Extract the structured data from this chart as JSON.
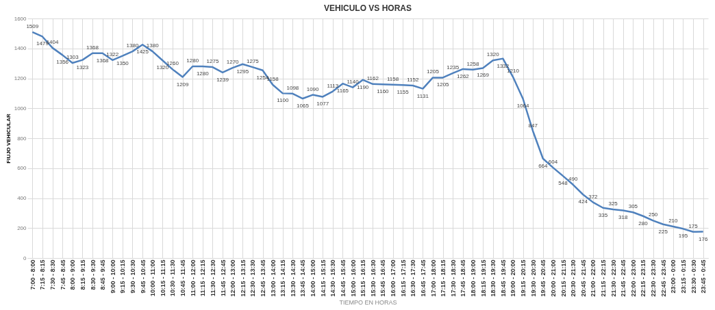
{
  "chart_data": {
    "type": "line",
    "title": "VEHICULO  VS HORAS",
    "xlabel": "TIEMPO EN HORAS",
    "ylabel": "FlUJO VEHICULAR",
    "categories": [
      "7:00 - 8:00",
      "7:15 - 8:15",
      "7:30 - 8:30",
      "7:45 - 8:45",
      "8:00 - 9:00",
      "8:15 - 9:15",
      "8:30 - 9:30",
      "8:45 - 9:45",
      "9:00 - 10:00",
      "9:15 - 10:15",
      "9:30 - 10:30",
      "9:45 - 10:45",
      "10:00 - 11:00",
      "10:15 - 11:15",
      "10:30 - 11:30",
      "10:45 - 11:45",
      "11:00 - 12:00",
      "11:15 - 12:15",
      "11:30 - 12:30",
      "11:45 - 12:45",
      "12:00 - 13:00",
      "12:15 - 13:15",
      "12:30 - 13:30",
      "12:45 - 13:45",
      "13:00 - 14:00",
      "13:15 - 14:15",
      "13:30 - 14:30",
      "13:45 - 14:45",
      "14:00 - 15:00",
      "14:15 - 15:15",
      "14:30 - 15:30",
      "14:45 - 15:45",
      "15:00 - 16:00",
      "15:15 - 16:15",
      "15:30 - 16:30",
      "15:45 - 16:45",
      "16:00 - 17:00",
      "16:15 - 17:15",
      "16:30 - 17:30",
      "16:45 - 17:45",
      "17:00 - 18:00",
      "17:15 - 18:15",
      "17:30 - 18:30",
      "17:45 - 18:45",
      "18:00 - 19:00",
      "18:15 - 19:15",
      "18:30 - 19:30",
      "18:45 - 19:45",
      "19:00 - 20:00",
      "19:15 - 20:15",
      "19:30 - 20:30",
      "19:45 - 20:45",
      "20:00 - 21:00",
      "20:15 - 21:15",
      "20:30 - 21:30",
      "20:45 - 21:45",
      "21:00 - 22:00",
      "21:15 - 22:15",
      "21:30 - 22:30",
      "21:45 - 22:45",
      "22:00 - 23:00",
      "22:15 - 23:15",
      "22:30 - 23:30",
      "22:45 - 23:45",
      "23:00 - 0:00",
      "23:15 - 0:15",
      "23:30 - 0:30",
      "23:45 - 0:45"
    ],
    "series": [
      {
        "color": "#4f81bd",
        "values": [
          1509,
          1479,
          1404,
          1356,
          1303,
          1323,
          1368,
          1368,
          1322,
          1350,
          1380,
          1425,
          1380,
          1320,
          1260,
          1209,
          1280,
          1280,
          1275,
          1239,
          1270,
          1295,
          1275,
          1254,
          1158,
          1100,
          1098,
          1065,
          1090,
          1077,
          1113,
          1165,
          1140,
          1190,
          1162,
          1160,
          1158,
          1155,
          1152,
          1131,
          1205,
          1205,
          1235,
          1262,
          1258,
          1269,
          1320,
          1332,
          1210,
          1064,
          847,
          664,
          604,
          548,
          490,
          424,
          372,
          335,
          325,
          318,
          305,
          280,
          250,
          225,
          210,
          195,
          175,
          176
        ]
      }
    ],
    "ylim": [
      0,
      1600
    ],
    "yticks": [
      0,
      200,
      400,
      600,
      800,
      1000,
      1200,
      1400,
      1600
    ],
    "grid": true,
    "data_labels": true,
    "marker": "none",
    "line_style": "solid"
  }
}
